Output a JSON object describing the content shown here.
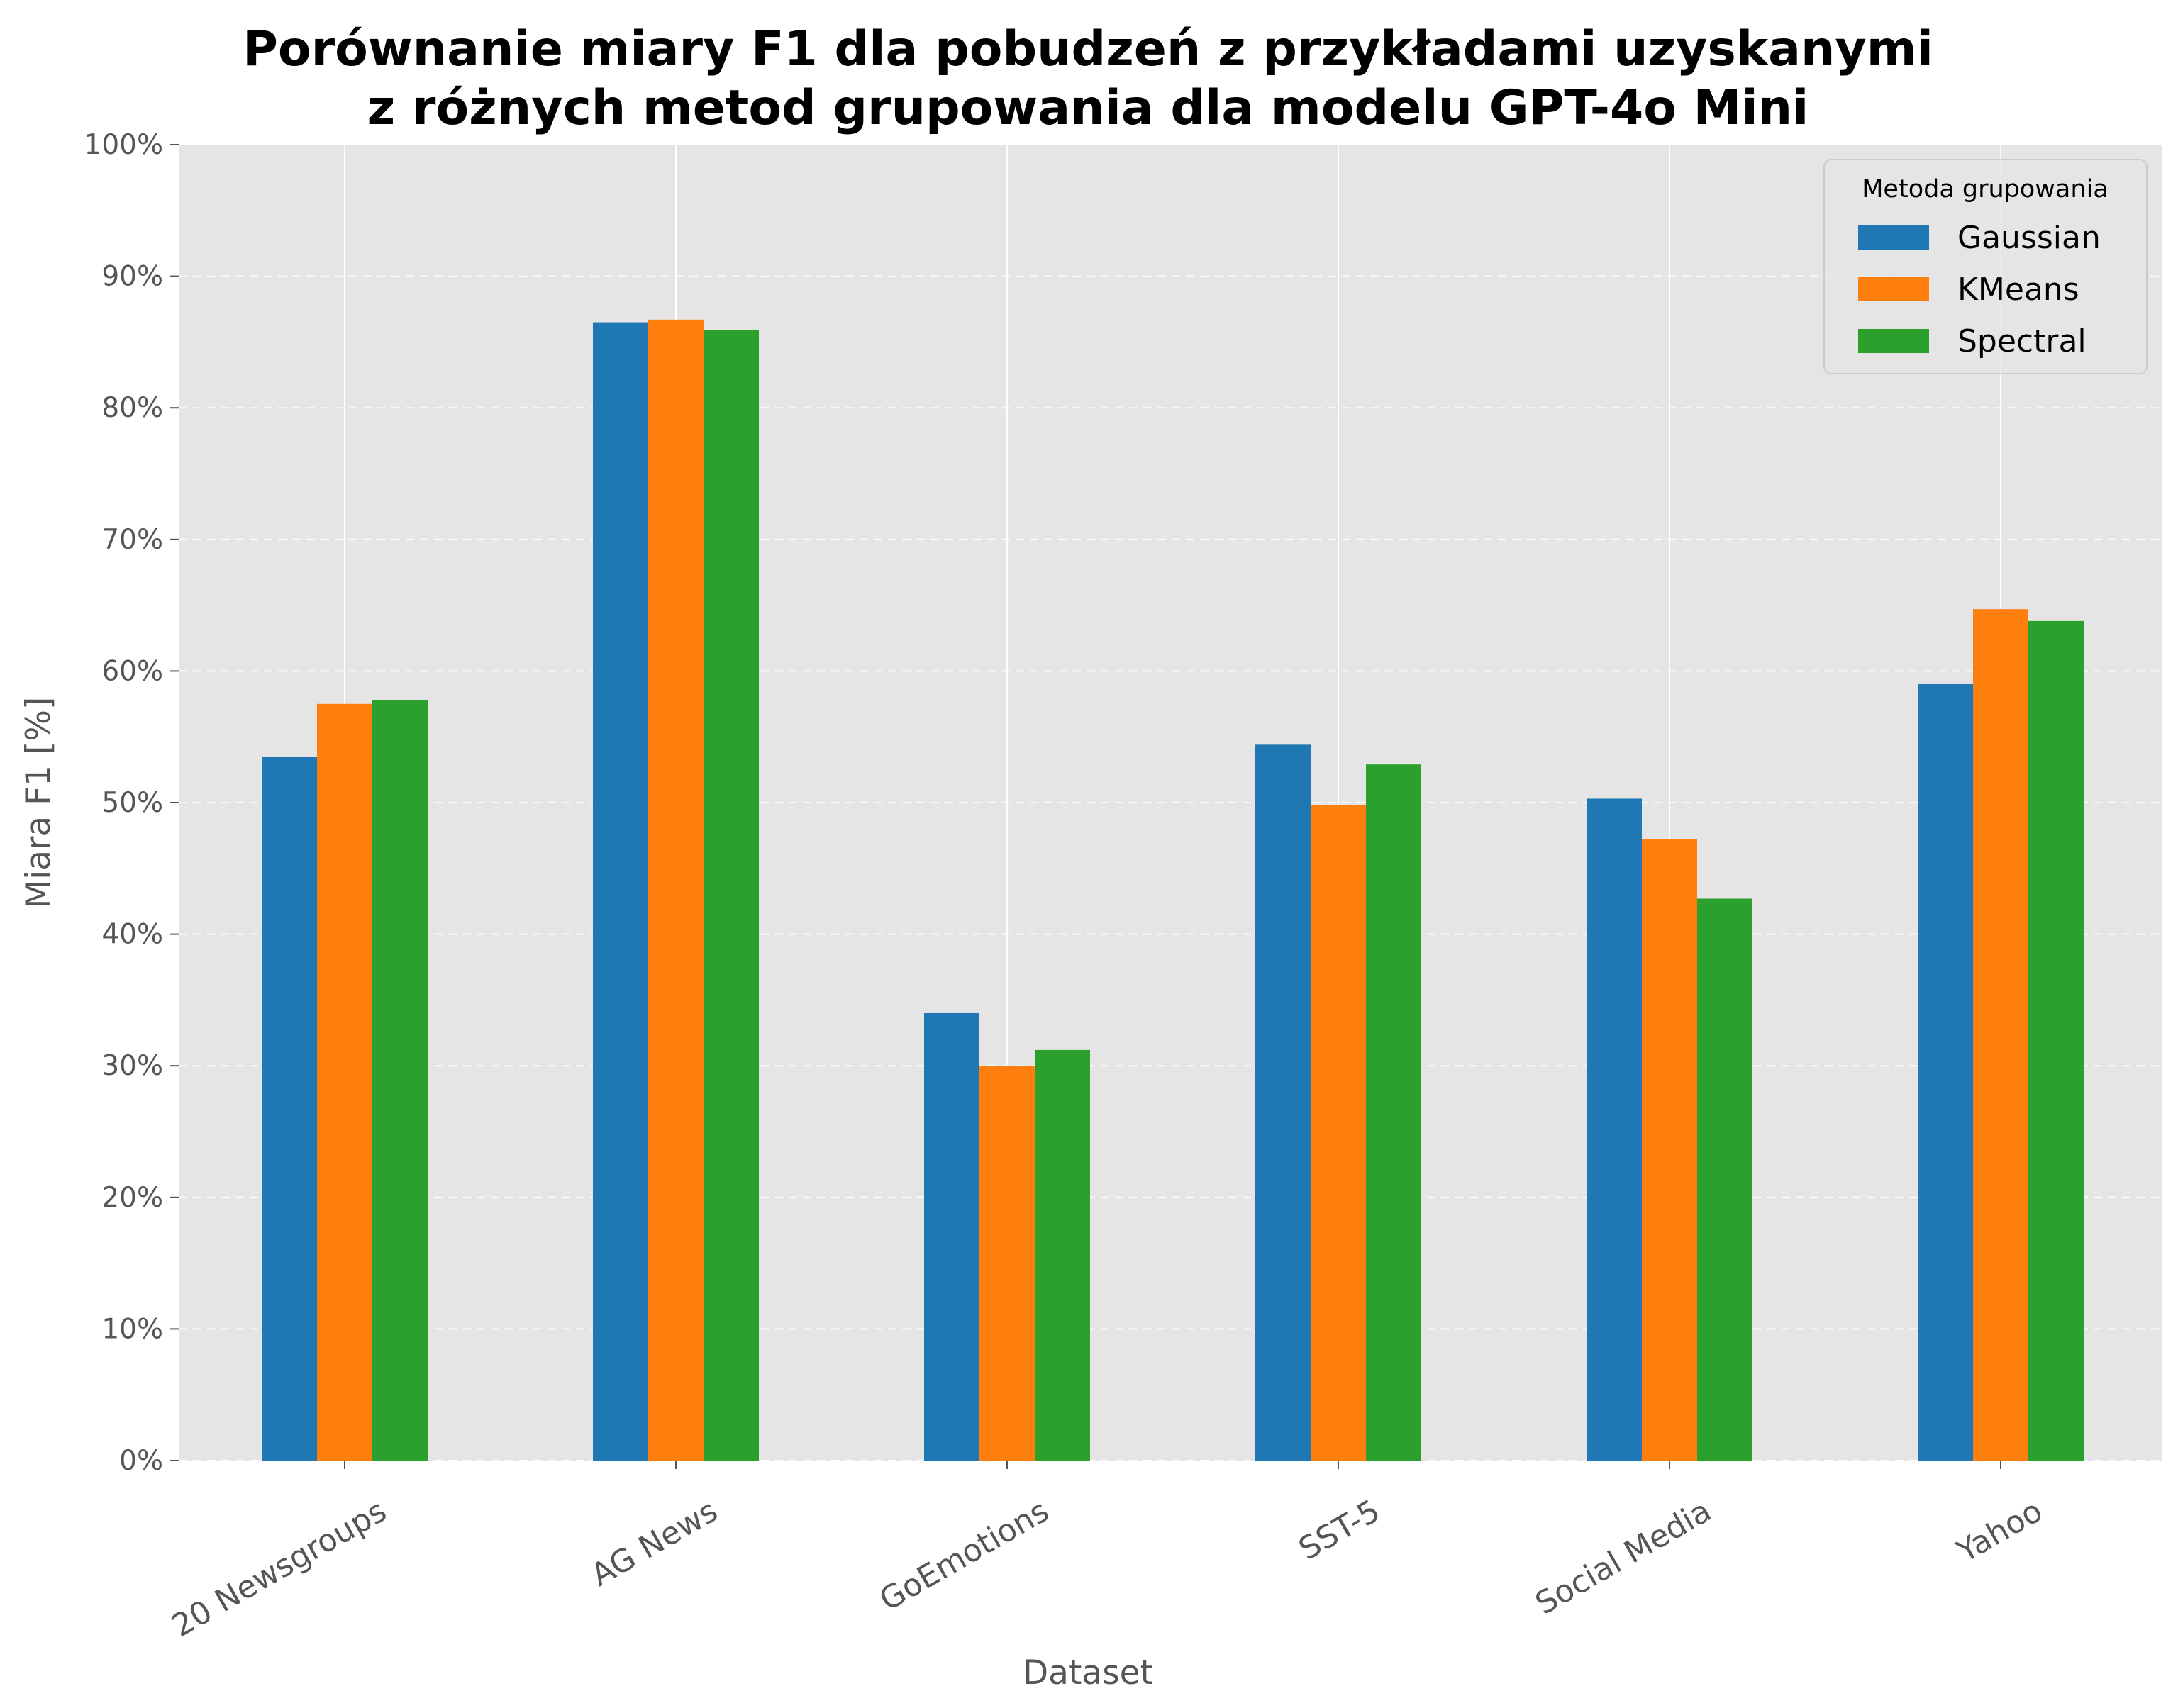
{
  "chart_data": {
    "type": "bar",
    "title_line1": "Porównanie miary F1 dla pobudzeń z przykładami uzyskanymi",
    "title_line2": "z różnych metod grupowania dla modelu GPT-4o Mini",
    "xlabel": "Dataset",
    "ylabel": "Miara F1 [%]",
    "ylim": [
      0,
      100
    ],
    "yticks": [
      0,
      10,
      20,
      30,
      40,
      50,
      60,
      70,
      80,
      90,
      100
    ],
    "ytick_labels": [
      "0%",
      "10%",
      "20%",
      "30%",
      "40%",
      "50%",
      "60%",
      "70%",
      "80%",
      "90%",
      "100%"
    ],
    "categories": [
      "20 Newsgroups",
      "AG News",
      "GoEmotions",
      "SST-5",
      "Social Media",
      "Yahoo"
    ],
    "series": [
      {
        "name": "Gaussian",
        "color": "#1f77b4",
        "values": [
          53.5,
          86.5,
          34.0,
          54.4,
          50.3,
          59.0
        ]
      },
      {
        "name": "KMeans",
        "color": "#ff7f0e",
        "values": [
          57.5,
          86.7,
          30.0,
          49.8,
          47.2,
          64.7
        ]
      },
      {
        "name": "Spectral",
        "color": "#2ca02c",
        "values": [
          57.8,
          85.9,
          31.2,
          52.9,
          42.7,
          63.8
        ]
      }
    ],
    "legend": {
      "title": "Metoda grupowania",
      "placement": "top-right"
    },
    "grid": {
      "y": "dashed",
      "x": "solid",
      "color": "#ffffff"
    },
    "plot_background": "#e5e5e5"
  }
}
